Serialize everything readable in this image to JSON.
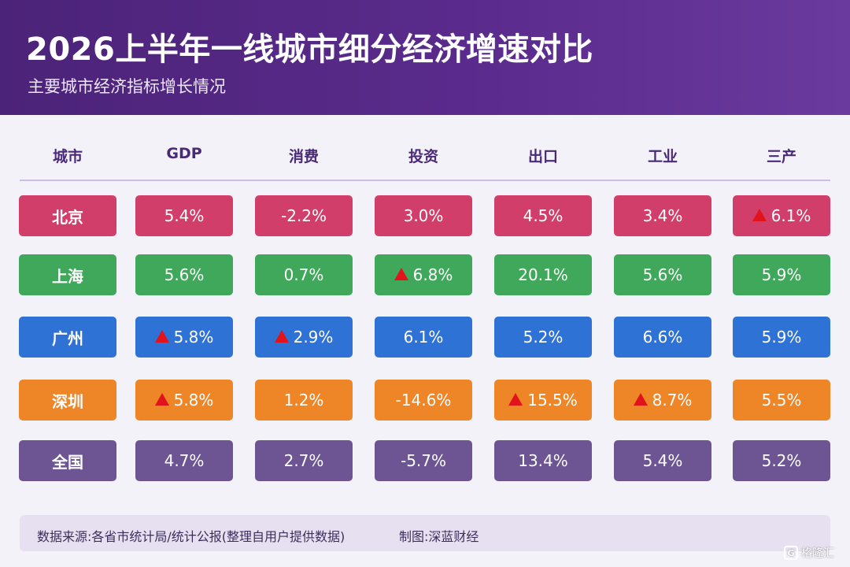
{
  "header": {
    "title": "2026上半年一线城市细分经济增速对比",
    "subtitle": "主要城市经济指标增长情况"
  },
  "colors": {
    "header_bg": "#4b2378",
    "beijing": "#d13e6a",
    "shanghai": "#3fa85a",
    "guangzhou": "#2f72d6",
    "shenzhen": "#ee8527",
    "national": "#6c5592",
    "up_marker": "#e3131b"
  },
  "chart_data": {
    "type": "table",
    "columns": [
      "城市",
      "GDP",
      "消费",
      "投资",
      "出口",
      "工业",
      "三产"
    ],
    "rows": [
      {
        "city": "北京",
        "color": "#d13e6a",
        "values": [
          "5.4%",
          "-2.2%",
          "3.0%",
          "4.5%",
          "3.4%",
          "6.1%"
        ],
        "up_marker": [
          false,
          false,
          false,
          false,
          false,
          true
        ]
      },
      {
        "city": "上海",
        "color": "#3fa85a",
        "values": [
          "5.6%",
          "0.7%",
          "6.8%",
          "20.1%",
          "5.6%",
          "5.9%"
        ],
        "up_marker": [
          false,
          false,
          true,
          false,
          false,
          false
        ]
      },
      {
        "city": "广州",
        "color": "#2f72d6",
        "values": [
          "5.8%",
          "2.9%",
          "6.1%",
          "5.2%",
          "6.6%",
          "5.9%"
        ],
        "up_marker": [
          true,
          true,
          false,
          false,
          false,
          false
        ]
      },
      {
        "city": "深圳",
        "color": "#ee8527",
        "values": [
          "5.8%",
          "1.2%",
          "-14.6%",
          "15.5%",
          "8.7%",
          "5.5%"
        ],
        "up_marker": [
          true,
          false,
          false,
          true,
          true,
          false
        ]
      },
      {
        "city": "全国",
        "color": "#6c5592",
        "values": [
          "4.7%",
          "2.7%",
          "-5.7%",
          "13.4%",
          "5.4%",
          "5.2%"
        ],
        "up_marker": [
          false,
          false,
          false,
          false,
          false,
          false
        ]
      }
    ]
  },
  "footer": {
    "source": "数据来源:各省市统计局/统计公报(整理自用户提供数据)",
    "credit": "制图:深蓝财经"
  },
  "watermark": {
    "icon": "gelonghui-logo-icon",
    "text": "格隆汇"
  }
}
